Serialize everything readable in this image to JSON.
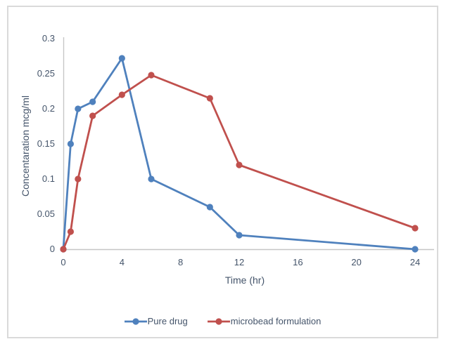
{
  "chart_data": {
    "type": "line",
    "title": "",
    "xlabel": "Time (hr)",
    "ylabel": "Concentaration mcg/ml",
    "x": [
      0,
      0.5,
      1,
      2,
      4,
      6,
      10,
      12,
      24
    ],
    "series": [
      {
        "name": "Pure drug",
        "color": "#4F81BD",
        "values": [
          0,
          0.15,
          0.2,
          0.21,
          0.272,
          0.1,
          0.06,
          0.02,
          0
        ]
      },
      {
        "name": "microbead formulation",
        "color": "#C0504D",
        "values": [
          0,
          0.025,
          0.1,
          0.19,
          0.22,
          0.248,
          0.215,
          0.12,
          0.03
        ]
      }
    ],
    "xlim": [
      0,
      24
    ],
    "ylim": [
      0,
      0.3
    ],
    "x_ticks": [
      0,
      4,
      8,
      12,
      16,
      20,
      24
    ],
    "x_tick_labels": [
      "0",
      "4",
      "8",
      "12",
      "16",
      "20",
      "24"
    ],
    "y_ticks": [
      0,
      0.05,
      0.1,
      0.15,
      0.2,
      0.25,
      0.3
    ],
    "y_tick_labels": [
      "0",
      "0.05",
      "0.1",
      "0.15",
      "0.2",
      "0.25",
      "0.3"
    ],
    "grid": false,
    "legend_position": "bottom-center",
    "marker": "circle"
  },
  "colors": {
    "series_blue": "#4F81BD",
    "series_red": "#C0504D",
    "axis_line": "#c6c6c6",
    "text": "#44546a",
    "frame_border": "#dadada",
    "background": "#ffffff"
  }
}
